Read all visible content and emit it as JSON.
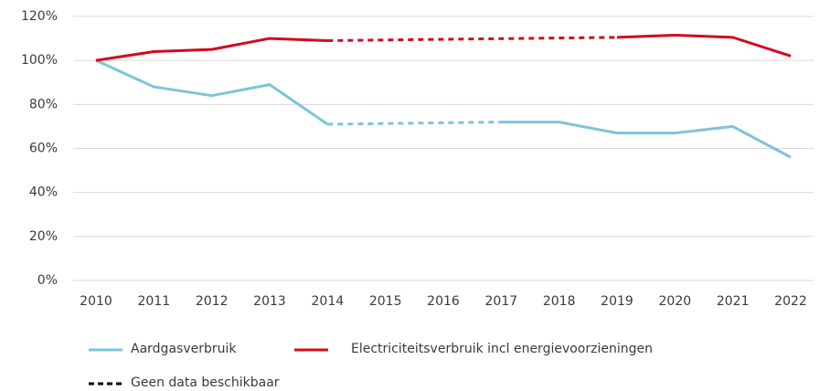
{
  "chart_data": {
    "type": "line",
    "categories": [
      "2010",
      "2011",
      "2012",
      "2013",
      "2014",
      "2015",
      "2016",
      "2017",
      "2018",
      "2019",
      "2020",
      "2021",
      "2022"
    ],
    "series": [
      {
        "name": "Aardgasverbruik",
        "color": "#7ec4d8",
        "values": [
          100,
          88,
          84,
          89,
          71,
          null,
          null,
          72,
          72,
          67,
          67,
          70,
          56
        ]
      },
      {
        "name": "Electriciteitsverbruik incl energievoorzieningen",
        "color": "#d20a1e",
        "values": [
          100,
          104,
          105,
          110,
          109,
          null,
          null,
          null,
          null,
          110.5,
          111.5,
          110.5,
          102
        ]
      }
    ],
    "gap_legend": "Geen data beschikbaar",
    "ylim": [
      0,
      120
    ],
    "yticks": [
      {
        "value": 0,
        "label": "0%"
      },
      {
        "value": 20,
        "label": "20%"
      },
      {
        "value": 40,
        "label": "40%"
      },
      {
        "value": 60,
        "label": "60%"
      },
      {
        "value": 80,
        "label": "80%"
      },
      {
        "value": 100,
        "label": "100%"
      },
      {
        "value": 120,
        "label": "120%"
      }
    ],
    "grid": true
  }
}
